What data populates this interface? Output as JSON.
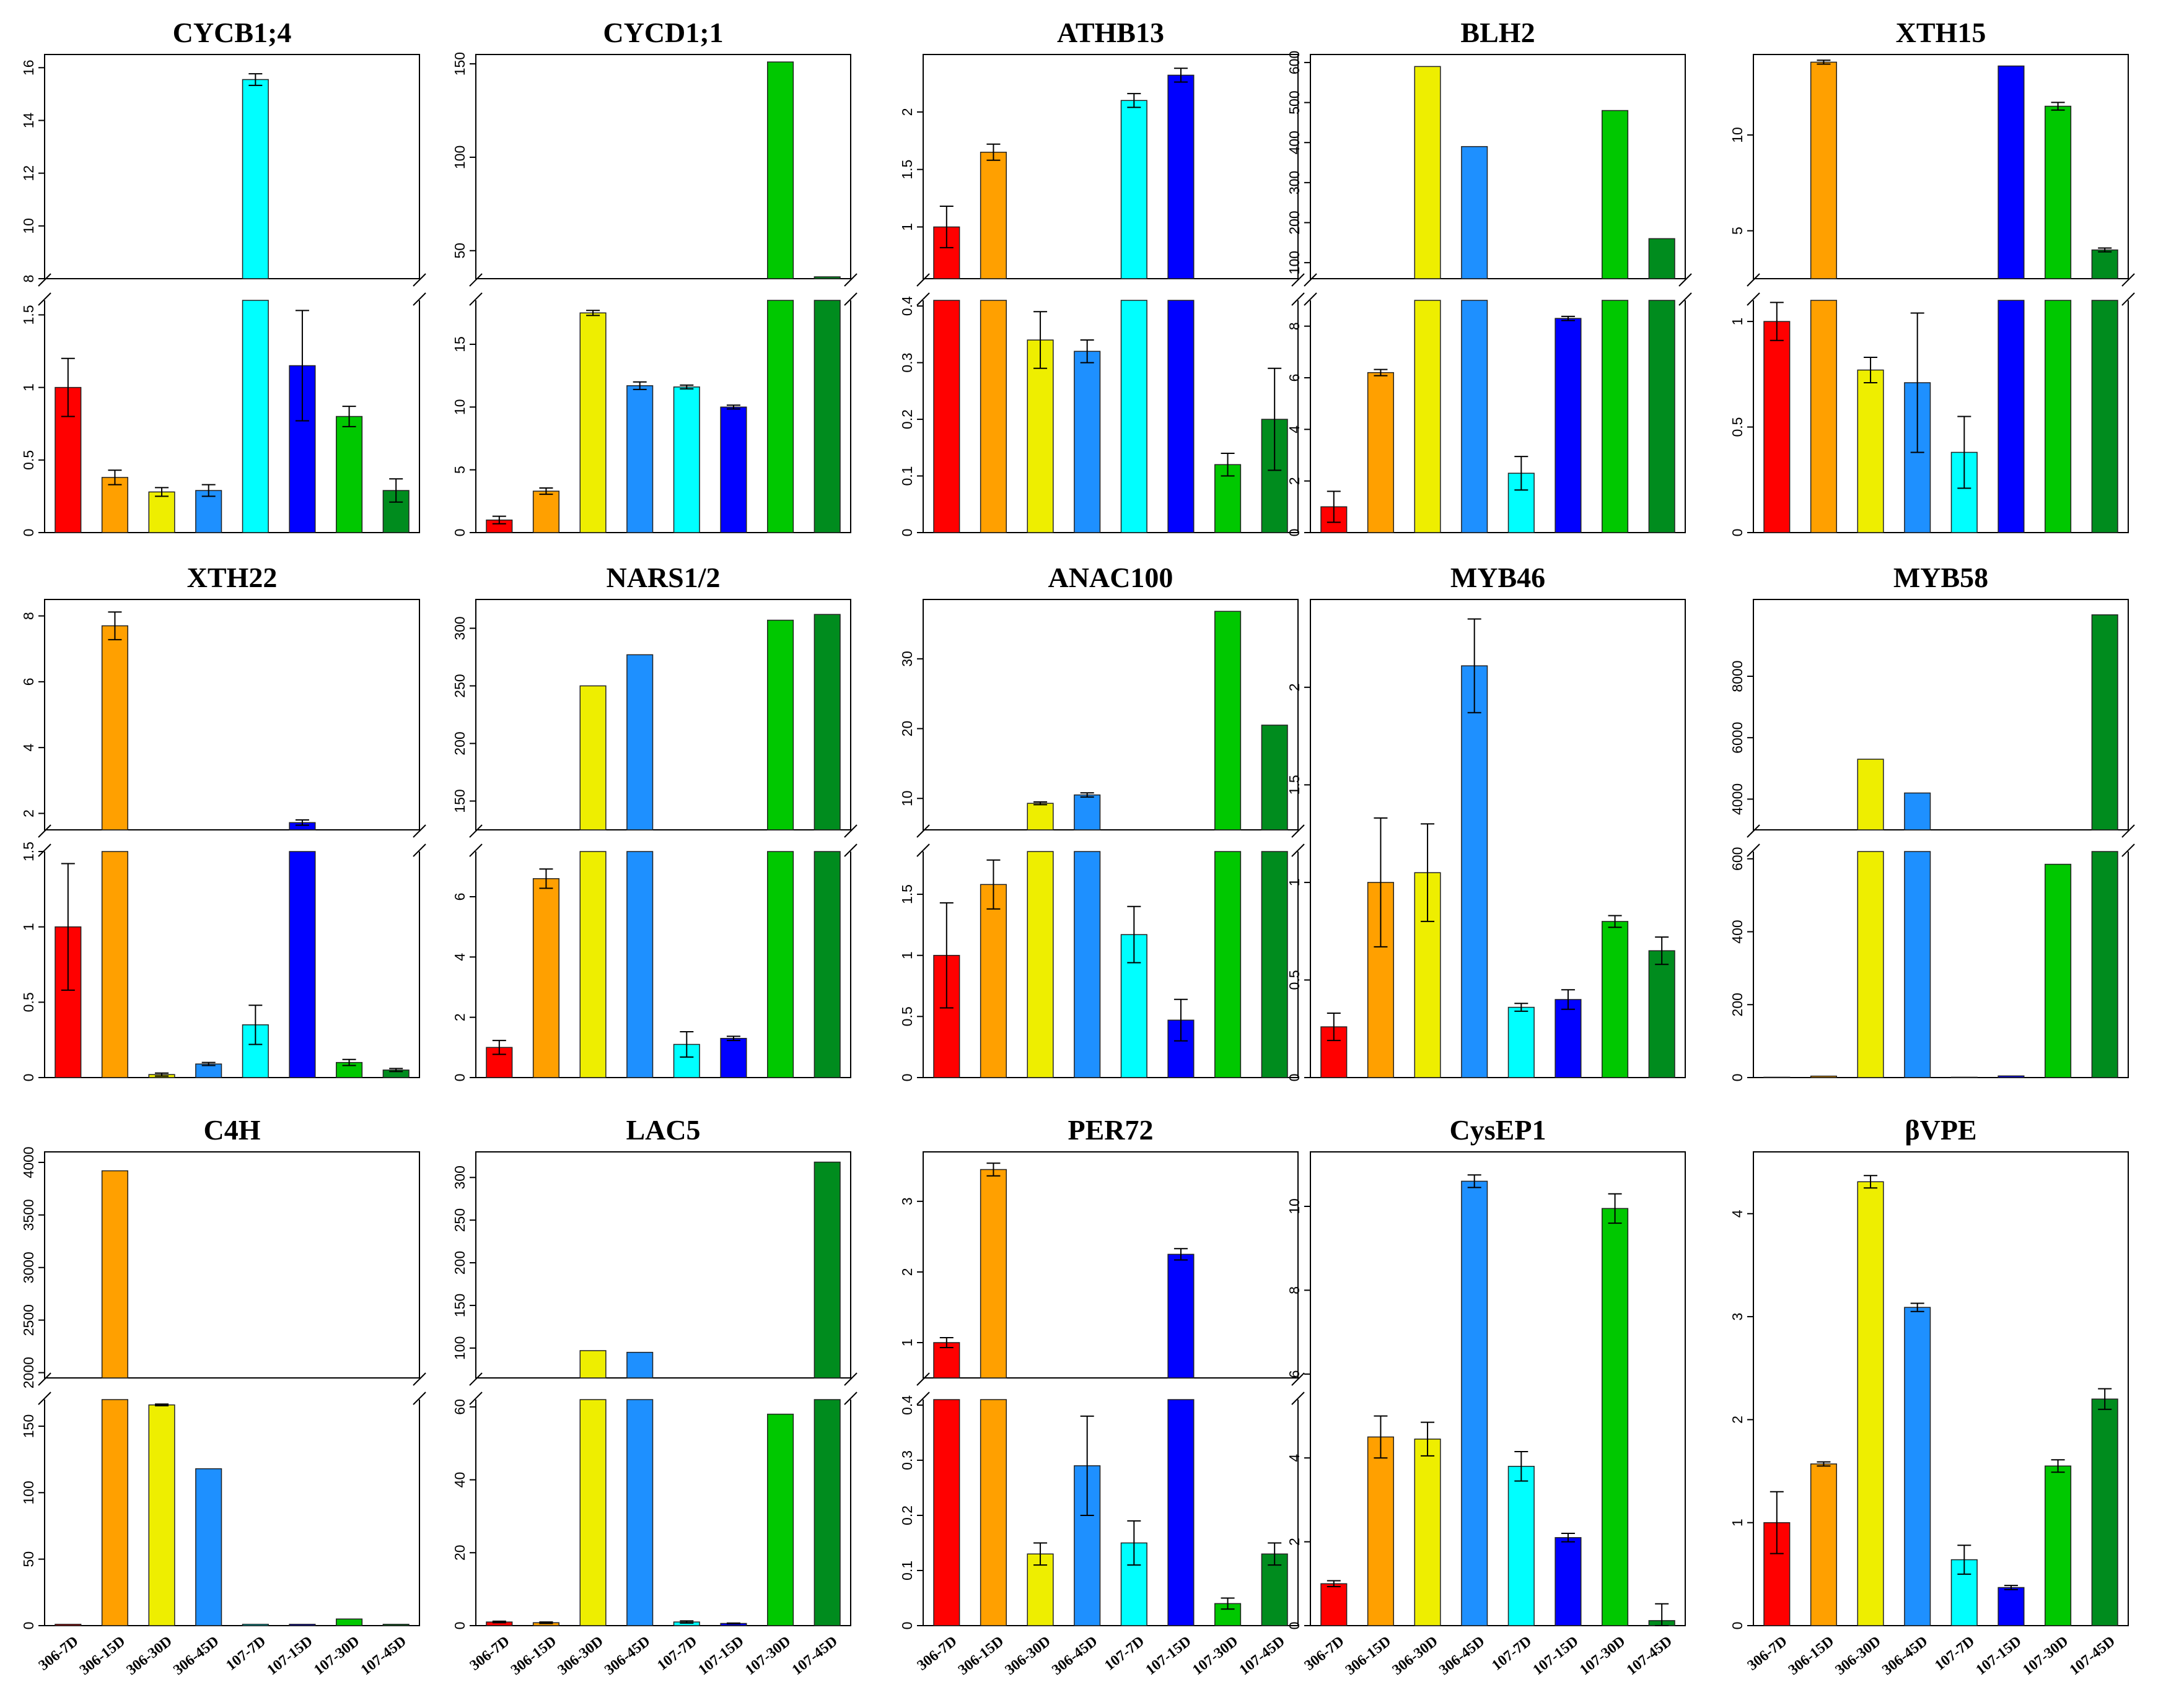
{
  "figure": {
    "x_categories": [
      "306-7D",
      "306-15D",
      "306-30D",
      "306-45D",
      "107-7D",
      "107-15D",
      "107-30D",
      "107-45D"
    ],
    "bar_colors": [
      "#ff0000",
      "#ffa000",
      "#eeee00",
      "#1e90ff",
      "#00ffff",
      "#0000ff",
      "#00c800",
      "#008c1e"
    ]
  },
  "chart_data": [
    {
      "type": "bar",
      "title": "CYCB1;4",
      "upper": {
        "range": [
          8,
          16.5
        ],
        "ticks": [
          8,
          10,
          12,
          14,
          16
        ]
      },
      "lower": {
        "range": [
          0,
          1.6
        ],
        "ticks": [
          0,
          0.5,
          1,
          1.5
        ]
      },
      "values": [
        1.0,
        0.38,
        0.28,
        0.29,
        15.55,
        1.15,
        0.8,
        0.29
      ],
      "errors": [
        0.2,
        0.05,
        0.03,
        0.04,
        0.22,
        0.38,
        0.07,
        0.08
      ]
    },
    {
      "type": "bar",
      "title": "CYCD1;1",
      "upper": {
        "range": [
          35,
          155
        ],
        "ticks": [
          50,
          100,
          150
        ]
      },
      "lower": {
        "range": [
          0,
          18.5
        ],
        "ticks": [
          0,
          5,
          10,
          15
        ]
      },
      "values": [
        1.0,
        3.3,
        17.5,
        11.7,
        11.6,
        10.0,
        151,
        36
      ],
      "errors": [
        0.3,
        0.25,
        0.2,
        0.3,
        0.15,
        0.15,
        0,
        0
      ]
    },
    {
      "type": "bar",
      "title": "ATHB13",
      "upper": {
        "range": [
          0.55,
          2.5
        ],
        "ticks": [
          1,
          1.5,
          2
        ]
      },
      "lower": {
        "range": [
          0,
          0.41
        ],
        "ticks": [
          0,
          0.1,
          0.2,
          0.3,
          0.4
        ]
      },
      "values": [
        1.0,
        1.65,
        0.34,
        0.32,
        2.1,
        2.32,
        0.12,
        0.2
      ],
      "errors": [
        0.18,
        0.07,
        0.05,
        0.02,
        0.06,
        0.06,
        0.02,
        0.09
      ]
    },
    {
      "type": "bar",
      "title": "BLH2",
      "upper": {
        "range": [
          60,
          620
        ],
        "ticks": [
          100,
          200,
          300,
          400,
          500,
          600
        ]
      },
      "lower": {
        "range": [
          0,
          9
        ],
        "ticks": [
          0,
          2,
          4,
          6,
          8
        ]
      },
      "values": [
        1.0,
        6.2,
        590,
        390,
        2.3,
        8.3,
        480,
        160
      ],
      "errors": [
        0.6,
        0.12,
        0,
        0,
        0.65,
        0.08,
        0,
        0
      ]
    },
    {
      "type": "bar",
      "title": "XTH15",
      "upper": {
        "range": [
          2.5,
          14.2
        ],
        "ticks": [
          5,
          10
        ]
      },
      "lower": {
        "range": [
          0,
          1.1
        ],
        "ticks": [
          0,
          0.5,
          1
        ]
      },
      "values": [
        1.0,
        13.8,
        0.77,
        0.71,
        0.38,
        13.6,
        11.5,
        4.0
      ],
      "errors": [
        0.09,
        0.1,
        0.06,
        0.33,
        0.17,
        0,
        0.2,
        0.1
      ]
    },
    {
      "type": "bar",
      "title": "XTH22",
      "upper": {
        "range": [
          1.5,
          8.5
        ],
        "ticks": [
          2,
          4,
          6,
          8
        ]
      },
      "lower": {
        "range": [
          0,
          1.5
        ],
        "ticks": [
          0,
          0.5,
          1,
          1.5
        ]
      },
      "values": [
        1.0,
        7.7,
        0.02,
        0.09,
        0.35,
        1.72,
        0.1,
        0.05
      ],
      "errors": [
        0.42,
        0.42,
        0.01,
        0.01,
        0.13,
        0.08,
        0.02,
        0.01
      ]
    },
    {
      "type": "bar",
      "title": "NARS1/2",
      "upper": {
        "range": [
          125,
          325
        ],
        "ticks": [
          150,
          200,
          250,
          300
        ]
      },
      "lower": {
        "range": [
          0,
          7.5
        ],
        "ticks": [
          0,
          2,
          4,
          6
        ]
      },
      "values": [
        1.0,
        6.6,
        250,
        277,
        1.1,
        1.3,
        307,
        312
      ],
      "errors": [
        0.23,
        0.32,
        0,
        0,
        0.42,
        0.07,
        0,
        0
      ]
    },
    {
      "type": "bar",
      "title": "ANAC100",
      "upper": {
        "range": [
          5.5,
          38.5
        ],
        "ticks": [
          10,
          20,
          30
        ]
      },
      "lower": {
        "range": [
          0,
          1.85
        ],
        "ticks": [
          0,
          0.5,
          1,
          1.5
        ]
      },
      "values": [
        1.0,
        1.58,
        9.3,
        10.5,
        1.17,
        0.47,
        36.8,
        20.5
      ],
      "errors": [
        0.43,
        0.2,
        0.2,
        0.3,
        0.23,
        0.17,
        0,
        0
      ]
    },
    {
      "type": "bar",
      "title": "MYB46",
      "ylim": [
        0,
        2.45
      ],
      "ticks": [
        0,
        0.5,
        1.0,
        1.5,
        2.0
      ],
      "values": [
        0.26,
        1.0,
        1.05,
        2.11,
        0.36,
        0.4,
        0.8,
        0.65
      ],
      "errors": [
        0.07,
        0.33,
        0.25,
        0.24,
        0.02,
        0.05,
        0.03,
        0.07
      ]
    },
    {
      "type": "bar",
      "title": "MYB58",
      "upper": {
        "range": [
          3000,
          10500
        ],
        "ticks": [
          4000,
          6000,
          8000
        ]
      },
      "lower": {
        "range": [
          0,
          620
        ],
        "ticks": [
          0,
          200,
          400,
          600
        ]
      },
      "values": [
        1.0,
        4.0,
        5300,
        4200,
        1.0,
        4.5,
        585,
        10000
      ],
      "errors": [
        0,
        0,
        0,
        0,
        0,
        0,
        0,
        0
      ]
    },
    {
      "type": "bar",
      "title": "C4H",
      "upper": {
        "range": [
          1950,
          4100
        ],
        "ticks": [
          2000,
          2500,
          3000,
          3500,
          4000
        ]
      },
      "lower": {
        "range": [
          0,
          170
        ],
        "ticks": [
          0,
          50,
          100,
          150
        ]
      },
      "values": [
        1.0,
        3920,
        166,
        118,
        1.0,
        1.0,
        5.0,
        1.0
      ],
      "errors": [
        0,
        0,
        0.6,
        0,
        0,
        0,
        0,
        0
      ]
    },
    {
      "type": "bar",
      "title": "LAC5",
      "upper": {
        "range": [
          65,
          330
        ],
        "ticks": [
          100,
          150,
          200,
          250,
          300
        ]
      },
      "lower": {
        "range": [
          0,
          62
        ],
        "ticks": [
          0,
          20,
          40,
          60
        ]
      },
      "values": [
        1.0,
        0.8,
        97,
        95,
        1.0,
        0.6,
        58,
        318
      ],
      "errors": [
        0.2,
        0.2,
        0,
        0,
        0.3,
        0.1,
        0,
        0
      ]
    },
    {
      "type": "bar",
      "title": "PER72",
      "upper": {
        "range": [
          0.5,
          3.7
        ],
        "ticks": [
          1,
          2,
          3
        ]
      },
      "lower": {
        "range": [
          0,
          0.41
        ],
        "ticks": [
          0,
          0.1,
          0.2,
          0.3,
          0.4
        ]
      },
      "values": [
        1.0,
        3.45,
        0.13,
        0.29,
        0.15,
        2.25,
        0.04,
        0.13
      ],
      "errors": [
        0.07,
        0.09,
        0.02,
        0.09,
        0.04,
        0.08,
        0.01,
        0.02
      ]
    },
    {
      "type": "bar",
      "title": "CysEP1",
      "ylim": [
        0,
        11.3
      ],
      "ticks": [
        0,
        2,
        4,
        6,
        8,
        10
      ],
      "values": [
        1.0,
        4.5,
        4.45,
        10.6,
        3.8,
        2.1,
        9.95,
        0.12
      ],
      "errors": [
        0.07,
        0.5,
        0.4,
        0.15,
        0.35,
        0.1,
        0.35,
        0.4
      ]
    },
    {
      "type": "bar",
      "title": "βVPE",
      "ylim": [
        0,
        4.6
      ],
      "ticks": [
        0,
        1,
        2,
        3,
        4
      ],
      "values": [
        1.0,
        1.57,
        4.31,
        3.09,
        0.64,
        0.37,
        1.55,
        2.2
      ],
      "errors": [
        0.3,
        0.02,
        0.06,
        0.04,
        0.14,
        0.02,
        0.06,
        0.1
      ]
    }
  ]
}
